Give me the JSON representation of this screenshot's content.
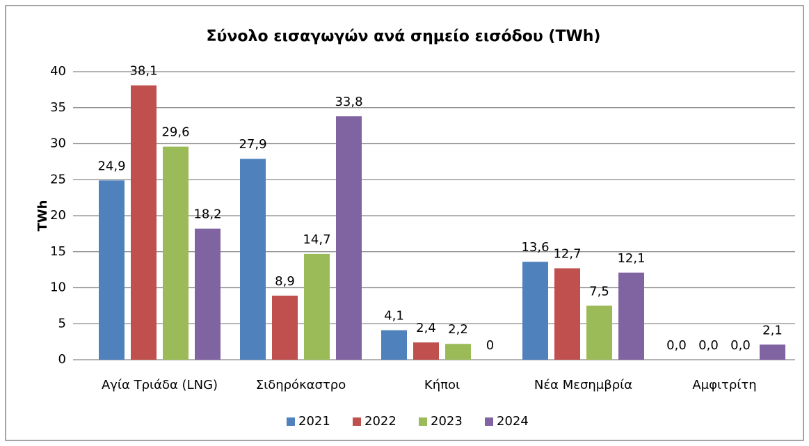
{
  "chart_data": {
    "type": "bar",
    "title": "Σύνολο εισαγωγών ανά σημείο εισόδου (TWh)",
    "y_label": "TWh",
    "categories": [
      "Αγία Τριάδα (LNG)",
      "Σιδηρόκαστρο",
      "Κήποι",
      "Νέα Μεσημβρία",
      "Αμφιτρίτη"
    ],
    "series": [
      {
        "name": "2021",
        "color": "#4f81bd",
        "values": [
          24.9,
          27.9,
          4.1,
          13.6,
          0.0
        ],
        "value_labels": [
          "24,9",
          "27,9",
          "4,1",
          "13,6",
          "0,0"
        ]
      },
      {
        "name": "2022",
        "color": "#c0504d",
        "values": [
          38.1,
          8.9,
          2.4,
          12.7,
          0.0
        ],
        "value_labels": [
          "38,1",
          "8,9",
          "2,4",
          "12,7",
          "0,0"
        ]
      },
      {
        "name": "2023",
        "color": "#9bbb59",
        "values": [
          29.6,
          14.7,
          2.2,
          7.5,
          0.0
        ],
        "value_labels": [
          "29,6",
          "14,7",
          "2,2",
          "7,5",
          "0,0"
        ]
      },
      {
        "name": "2024",
        "color": "#8064a2",
        "values": [
          18.2,
          33.8,
          0,
          12.1,
          2.1
        ],
        "value_labels": [
          "18,2",
          "33,8",
          "0",
          "12,1",
          "2,1"
        ]
      }
    ],
    "ylim": [
      0,
      40
    ],
    "yticks": [
      0,
      5,
      10,
      15,
      20,
      25,
      30,
      35,
      40
    ],
    "grid": true,
    "legend": "bottom"
  }
}
